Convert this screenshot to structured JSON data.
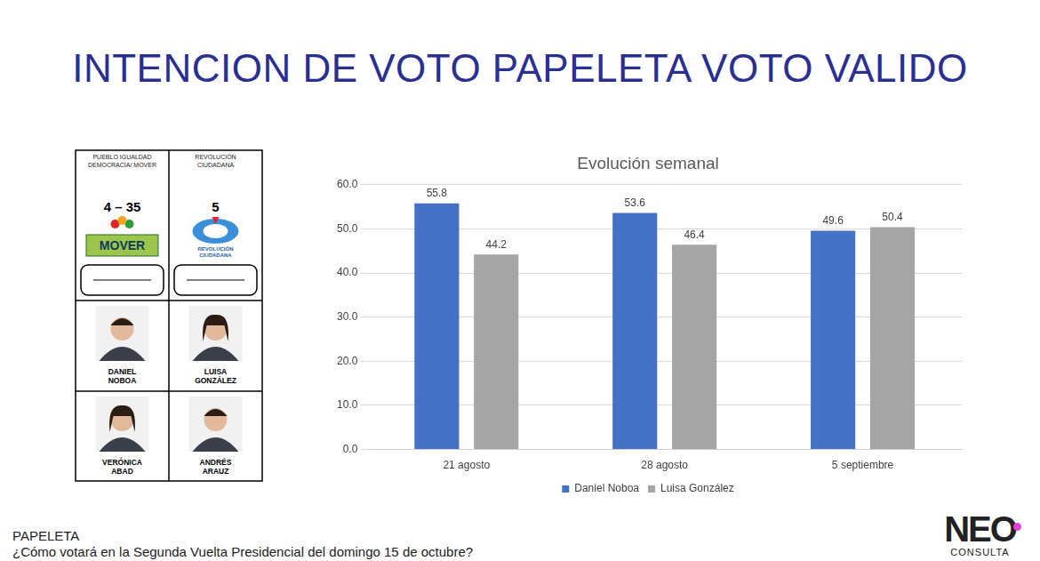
{
  "title": "INTENCION DE VOTO PAPELETA VOTO VALIDO",
  "ballot": {
    "columns": [
      {
        "party": "PUEBLO IGUALDAD DEMOCRACIA/ MOVER",
        "list": "4 – 35",
        "logo": "MOVER",
        "president": "DANIEL NOBOA",
        "vice_president": "VERÓNICA ABAD"
      },
      {
        "party": "REVOLUCIÓN CIUDADANA",
        "list": "5",
        "logo": "REVOLUCIÓN CIUDADANA",
        "president": "LUISA GONZÁLEZ",
        "vice_president": "ANDRÉS ARAUZ"
      }
    ]
  },
  "chart_data": {
    "type": "bar",
    "title": "Evolución semanal",
    "categories": [
      "21 agosto",
      "28 agosto",
      "5 septiembre"
    ],
    "series": [
      {
        "name": "Daniel Noboa",
        "color": "#4472c4",
        "values": [
          55.8,
          53.6,
          49.6
        ]
      },
      {
        "name": "Luisa González",
        "color": "#a5a5a5",
        "values": [
          44.2,
          46.4,
          50.4
        ]
      }
    ],
    "ylim": [
      0,
      60
    ],
    "yticks": [
      {
        "value": 0,
        "label": "0.0"
      },
      {
        "value": 10,
        "label": "10.0"
      },
      {
        "value": 20,
        "label": "20.0"
      },
      {
        "value": 30,
        "label": "30.0"
      },
      {
        "value": 40,
        "label": "40.0"
      },
      {
        "value": 50,
        "label": "50.0"
      },
      {
        "value": 60,
        "label": "60.0"
      }
    ],
    "grid": true,
    "legend": "bottom",
    "data_labels": true
  },
  "footer": {
    "label": "PAPELETA",
    "question": "¿Cómo votará en la Segunda Vuelta Presidencial del domingo 15 de octubre?"
  },
  "logo": {
    "name": "NEO",
    "subtitle": "CONSULTA"
  }
}
